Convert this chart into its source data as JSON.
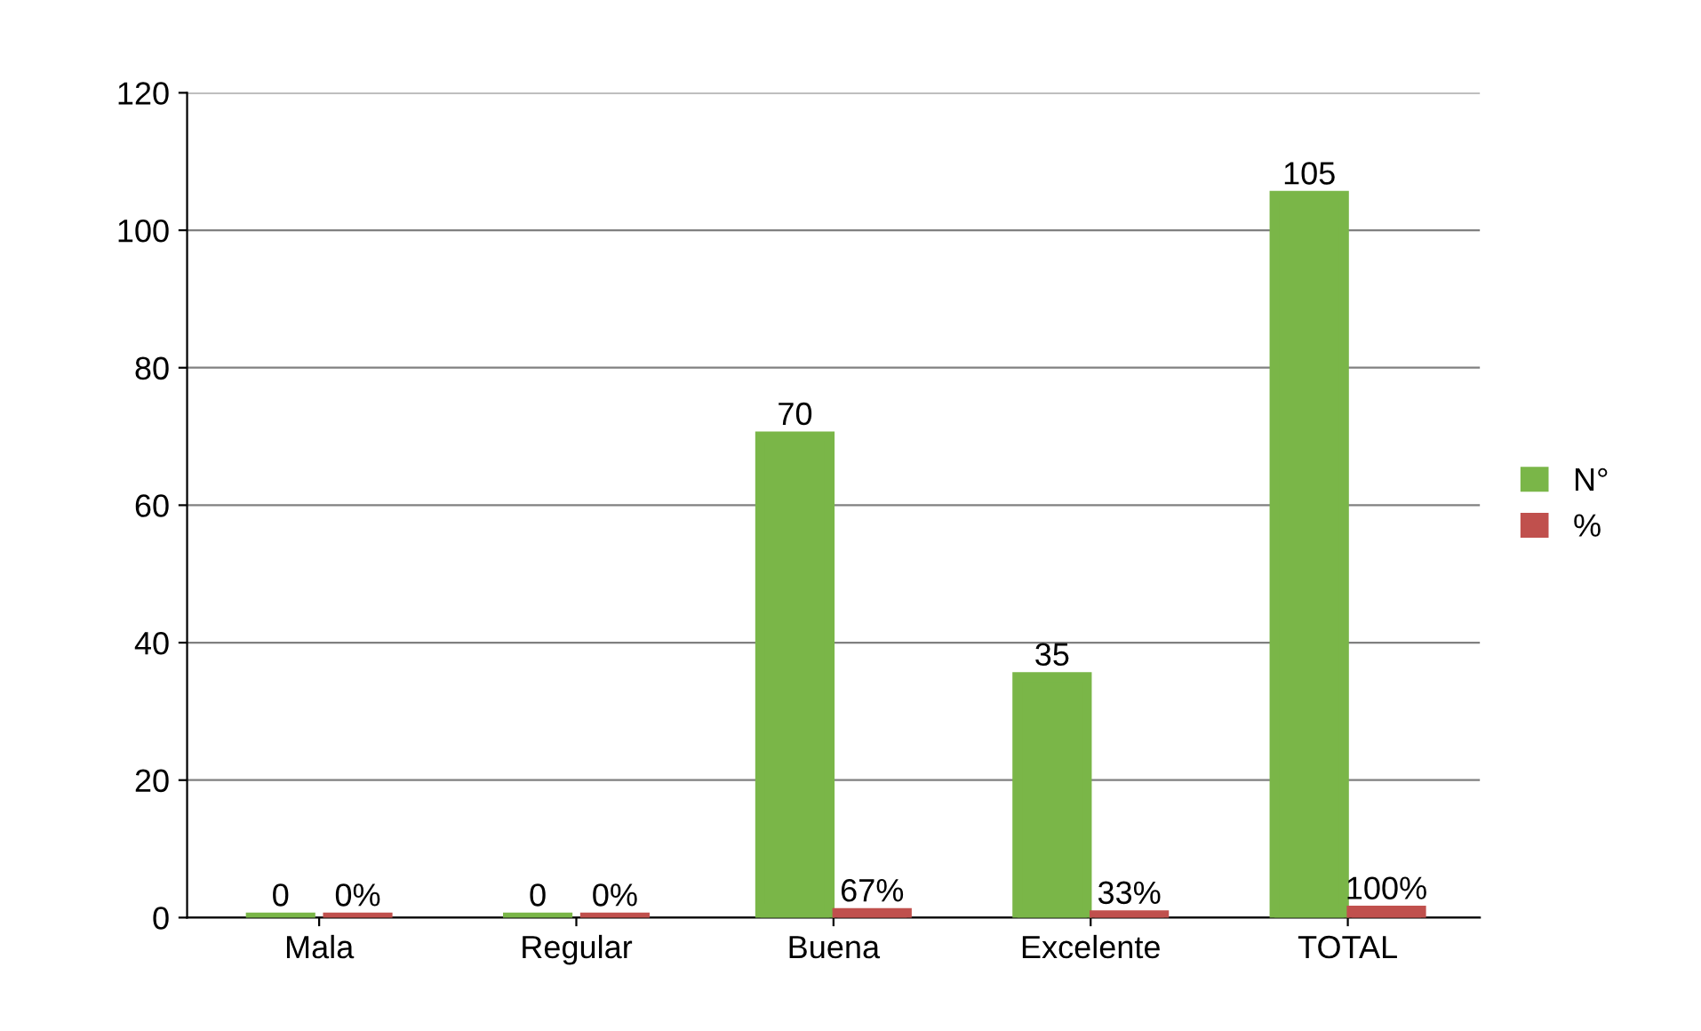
{
  "chart_data": {
    "type": "bar",
    "categories": [
      "Mala",
      "Regular",
      "Buena",
      "Excelente",
      "TOTAL"
    ],
    "series": [
      {
        "name": "N°",
        "color": "#7ab648",
        "values": [
          0,
          0,
          70,
          35,
          105
        ],
        "value_labels": [
          "0",
          "0",
          "70",
          "35",
          "105"
        ]
      },
      {
        "name": "%",
        "color": "#c0504d",
        "values": [
          0,
          0,
          0.67,
          0.33,
          1
        ],
        "value_labels": [
          "0%",
          "0%",
          "67%",
          "33%",
          "100%"
        ]
      }
    ],
    "ylim": [
      0,
      120
    ],
    "yticks": [
      0,
      20,
      40,
      60,
      80,
      100,
      120
    ],
    "grid": "y",
    "legend": "right"
  }
}
